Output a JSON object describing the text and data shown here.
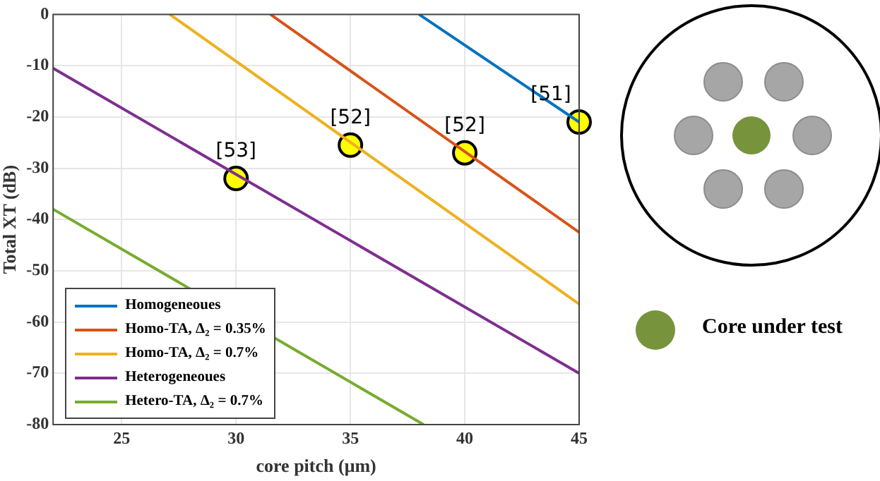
{
  "chart_data": {
    "type": "line",
    "xlabel": "core pitch (μm)",
    "ylabel": "Total XT (dB)",
    "xlim": [
      22,
      45
    ],
    "xticks": [
      25,
      30,
      35,
      40,
      45
    ],
    "ylim": [
      -80,
      0
    ],
    "yticks": [
      -80,
      -70,
      -60,
      -50,
      -40,
      -30,
      -20,
      -10,
      0
    ],
    "grid": true,
    "legend": "bottom left",
    "line_style": "solid",
    "series": [
      {
        "name": "Homogeneoues",
        "color": "#0072bd",
        "x": [
          38,
          45
        ],
        "values": [
          0,
          -21
        ]
      },
      {
        "name": "Homo-TA, Δ₂ = 0.35%",
        "color": "#d95319",
        "x": [
          31.5,
          45
        ],
        "values": [
          0,
          -42.5
        ]
      },
      {
        "name": "Homo-TA, Δ₂ = 0.7%",
        "color": "#edb120",
        "x": [
          27.1,
          45
        ],
        "values": [
          0,
          -56.5
        ]
      },
      {
        "name": "Heterogeneoues",
        "color": "#7e2f8e",
        "x": [
          22,
          45
        ],
        "values": [
          -10.5,
          -70
        ]
      },
      {
        "name": "Hetero-TA, Δ₂ = 0.7%",
        "color": "#77ac30",
        "x": [
          22,
          38.2
        ],
        "values": [
          -38,
          -80
        ]
      },
      {
        "type": "scatter",
        "marker": "circle",
        "color": "#ffff00",
        "x": [
          30,
          35,
          40,
          45
        ],
        "values": [
          -32,
          -25.5,
          -27,
          -21
        ]
      }
    ],
    "annotations": [
      {
        "text": "[53]",
        "x": 30,
        "y": -32
      },
      {
        "text": "[52]",
        "x": 35,
        "y": -25.5
      },
      {
        "text": "[52]",
        "x": 40,
        "y": -27
      },
      {
        "text": "[51]",
        "x": 45,
        "y": -21
      },
      "Core under test"
    ]
  }
}
